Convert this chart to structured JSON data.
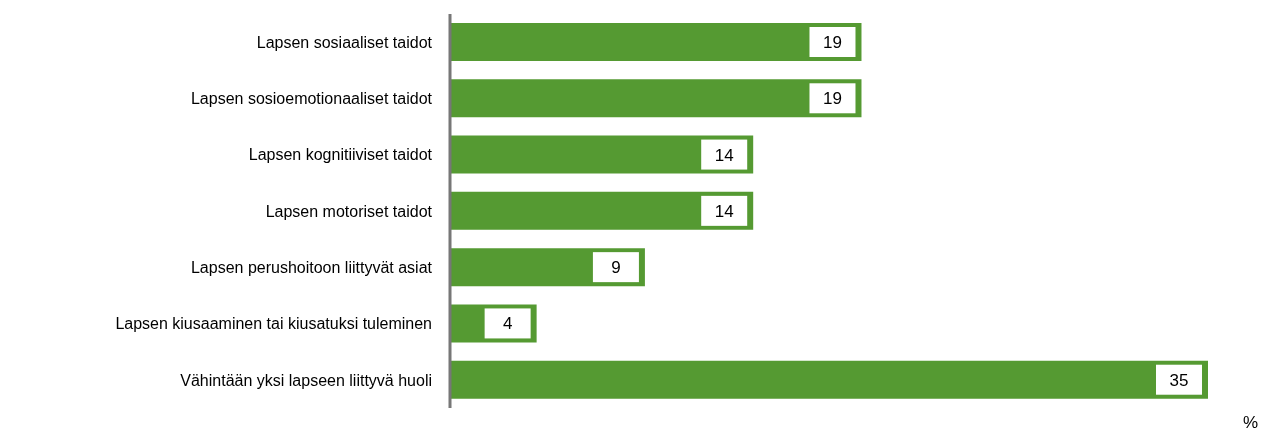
{
  "chart_data": {
    "type": "bar",
    "orientation": "horizontal",
    "categories": [
      "Lapsen sosiaaliset taidot",
      "Lapsen sosioemotionaaliset taidot",
      "Lapsen kognitiiviset taidot",
      "Lapsen motoriset taidot",
      "Lapsen perushoitoon liittyvät asiat",
      "Lapsen kiusaaminen tai kiusatuksi tuleminen",
      "Vähintään yksi lapseen liittyvä huoli"
    ],
    "values": [
      19,
      19,
      14,
      14,
      9,
      4,
      35
    ],
    "color": "#559a32",
    "data_labels": true,
    "xlabel": "%"
  }
}
